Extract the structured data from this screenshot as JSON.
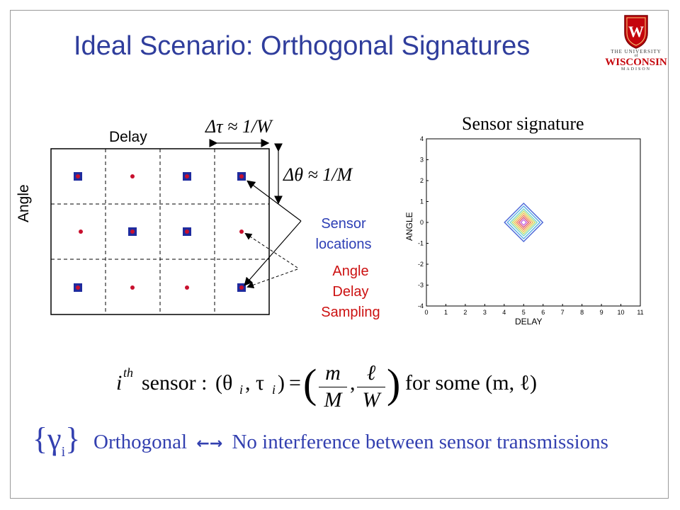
{
  "slide": {
    "title": "Ideal Scenario: Orthogonal Signatures",
    "logo": {
      "line1": "THE UNIVERSITY",
      "line2": "of",
      "line3": "WISCONSIN",
      "line4": "MADISON",
      "crest_letter": "W",
      "crest_color": "#c5050c"
    },
    "grid": {
      "delay_label": "Delay",
      "angle_label": "Angle",
      "delta_tau": "Δτ ≈ 1/W",
      "delta_theta": "Δθ ≈ 1/M",
      "colors": {
        "sensor": "#1f2b9e",
        "sample": "#c8102e"
      }
    },
    "annotation": {
      "sensor_line1": "Sensor",
      "sensor_line2": "locations",
      "sampling_line1": "Angle",
      "sampling_line2": "Delay",
      "sampling_line3": "Sampling"
    },
    "plot": {
      "title": "Sensor signature",
      "xlabel": "DELAY",
      "ylabel": "ANGLE",
      "xticks": [
        "0",
        "1",
        "2",
        "3",
        "4",
        "5",
        "6",
        "7",
        "8",
        "9",
        "10",
        "11"
      ],
      "yticks": [
        "4",
        "3",
        "2",
        "1",
        "0",
        "-1",
        "-2",
        "-3",
        "-4"
      ]
    },
    "equation": {
      "lhs_i": "i",
      "lhs_sup": "th",
      "lhs_word": "sensor :",
      "theta_tau": "(θ",
      "sub_i1": "i",
      "comma": ", τ",
      "sub_i2": "i",
      "close": ")",
      "equals": "=",
      "frac1_num": "m",
      "frac1_den": "M",
      "frac2_num": "ℓ",
      "frac2_den": "W",
      "tail": "for some (m, ℓ)"
    },
    "footer": {
      "gamma": "{γ",
      "gamma_sub": "i",
      "gamma_close": "}",
      "orth": "Orthogonal",
      "arrow": "←→",
      "text": "No interference between sensor transmissions"
    }
  }
}
